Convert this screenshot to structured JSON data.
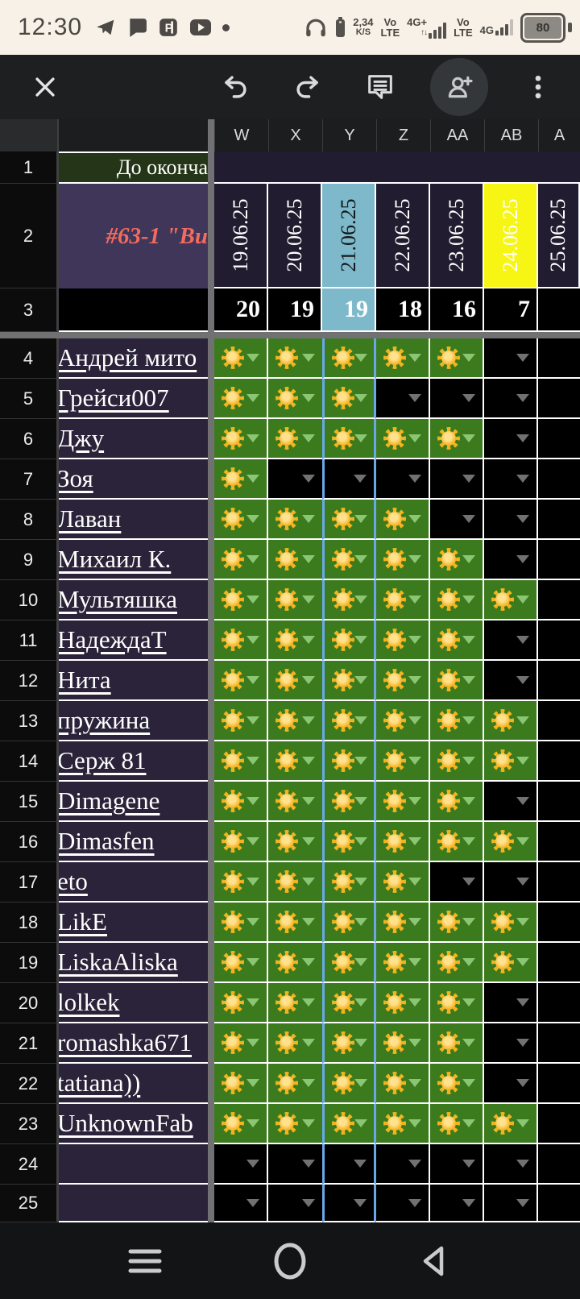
{
  "status_bar": {
    "time": "12:30",
    "left_icons": [
      "telegram-icon",
      "chat-bubble-icon",
      "p-app-icon",
      "youtube-icon",
      "notification-dot"
    ],
    "net_speed": {
      "value": "2,34",
      "unit": "K/S"
    },
    "sim1": {
      "line1": "Vo",
      "line2": "LTE"
    },
    "net1_label": "4G+",
    "sim2": {
      "line1": "Vo",
      "line2": "LTE"
    },
    "net2_label": "4G",
    "battery_percent": "80"
  },
  "toolbar": {
    "icons": [
      "close",
      "undo",
      "redo",
      "comment",
      "add-person",
      "overflow-menu"
    ]
  },
  "sheet": {
    "column_headers": [
      "W",
      "X",
      "Y",
      "Z",
      "AA",
      "AB",
      "A"
    ],
    "row1": {
      "number": "1",
      "label": "До оконча"
    },
    "row2": {
      "number": "2",
      "title": "#63-1 \"Ви",
      "dates": [
        {
          "text": "19.06.25",
          "style": "dark"
        },
        {
          "text": "20.06.25",
          "style": "dark"
        },
        {
          "text": "21.06.25",
          "style": "teal"
        },
        {
          "text": "22.06.25",
          "style": "dark"
        },
        {
          "text": "23.06.25",
          "style": "dark"
        },
        {
          "text": "24.06.25",
          "style": "yellow"
        },
        {
          "text": "25.06.25",
          "style": "dark"
        }
      ]
    },
    "row3": {
      "number": "3",
      "counts": [
        "20",
        "19",
        "19",
        "18",
        "16",
        "7"
      ]
    },
    "day_columns": [
      "W",
      "X",
      "Y",
      "Z",
      "AA",
      "AB"
    ],
    "rows": [
      {
        "number": "4",
        "name": "Андрей мито",
        "cells": [
          1,
          1,
          1,
          1,
          1,
          0
        ]
      },
      {
        "number": "5",
        "name": "Грейси007",
        "cells": [
          1,
          1,
          1,
          0,
          0,
          0
        ]
      },
      {
        "number": "6",
        "name": "Джу",
        "cells": [
          1,
          1,
          1,
          1,
          1,
          0
        ]
      },
      {
        "number": "7",
        "name": "Зоя",
        "cells": [
          1,
          0,
          0,
          0,
          0,
          0
        ]
      },
      {
        "number": "8",
        "name": "Лаван",
        "cells": [
          1,
          1,
          1,
          1,
          0,
          0
        ]
      },
      {
        "number": "9",
        "name": "Михаил К.",
        "cells": [
          1,
          1,
          1,
          1,
          1,
          0
        ]
      },
      {
        "number": "10",
        "name": "Мультяшка",
        "cells": [
          1,
          1,
          1,
          1,
          1,
          1
        ]
      },
      {
        "number": "11",
        "name": "НадеждаТ",
        "cells": [
          1,
          1,
          1,
          1,
          1,
          0
        ]
      },
      {
        "number": "12",
        "name": "Нита",
        "cells": [
          1,
          1,
          1,
          1,
          1,
          0
        ]
      },
      {
        "number": "13",
        "name": "пружина",
        "cells": [
          1,
          1,
          1,
          1,
          1,
          1
        ]
      },
      {
        "number": "14",
        "name": "Серж 81",
        "cells": [
          1,
          1,
          1,
          1,
          1,
          1
        ]
      },
      {
        "number": "15",
        "name": "Dimagene",
        "cells": [
          1,
          1,
          1,
          1,
          1,
          0
        ]
      },
      {
        "number": "16",
        "name": "Dimasfen",
        "cells": [
          1,
          1,
          1,
          1,
          1,
          1
        ]
      },
      {
        "number": "17",
        "name": "eto",
        "cells": [
          1,
          1,
          1,
          1,
          0,
          0
        ]
      },
      {
        "number": "18",
        "name": "LikE",
        "cells": [
          1,
          1,
          1,
          1,
          1,
          1
        ]
      },
      {
        "number": "19",
        "name": "LiskaAliska",
        "cells": [
          1,
          1,
          1,
          1,
          1,
          1
        ]
      },
      {
        "number": "20",
        "name": "lolkek",
        "cells": [
          1,
          1,
          1,
          1,
          1,
          0
        ]
      },
      {
        "number": "21",
        "name": "romashka671",
        "cells": [
          1,
          1,
          1,
          1,
          1,
          0
        ]
      },
      {
        "number": "22",
        "name": "tatiana))",
        "cells": [
          1,
          1,
          1,
          1,
          1,
          0
        ]
      },
      {
        "number": "23",
        "name": "UnknownFab",
        "cells": [
          1,
          1,
          1,
          1,
          1,
          1
        ]
      },
      {
        "number": "24",
        "name": "",
        "cells": [
          0,
          0,
          0,
          0,
          0,
          0
        ]
      },
      {
        "number": "25",
        "name": "",
        "cells": [
          0,
          0,
          0,
          0,
          0,
          0
        ]
      }
    ]
  },
  "colors": {
    "cell_done_green": "#3b7b1e",
    "today_highlight_teal": "#7db9ca",
    "deadline_yellow": "#f7f513",
    "name_cell_purple": "#2a2339",
    "header_cell_purple": "#211c2f",
    "title_cell_purple": "#3f3659",
    "title_text_coral": "#f26b5e",
    "round_label_green": "#243617",
    "today_border_blue": "#6aa7e8",
    "frozen_divider_gray": "#717173"
  },
  "nav_bar": {
    "icons": [
      "recents",
      "home",
      "back"
    ]
  }
}
